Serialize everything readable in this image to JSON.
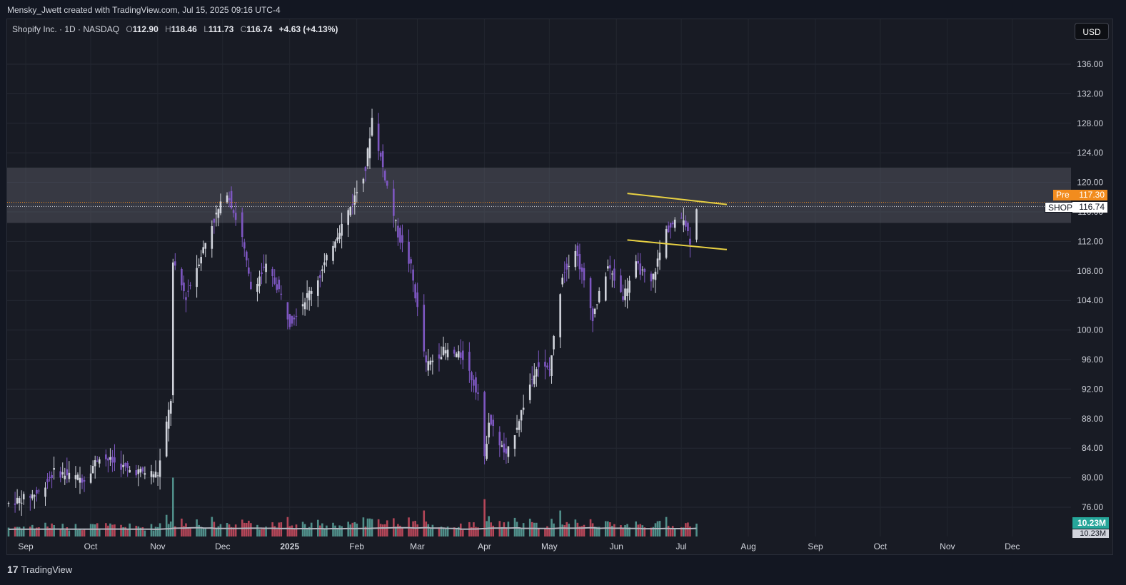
{
  "header": {
    "attribution": "Mensky_Jwett created with TradingView.com, Jul 15, 2025 09:16 UTC-4"
  },
  "legend": {
    "symbol": "Shopify Inc. · 1D · NASDAQ",
    "o_label": "O",
    "o_value": "112.90",
    "h_label": "H",
    "h_value": "118.46",
    "l_label": "L",
    "l_value": "111.73",
    "c_label": "C",
    "c_value": "116.74",
    "change": "+4.63 (+4.13%)"
  },
  "currency_button": "USD",
  "price_tags": {
    "pre_label": "Pre",
    "pre_value": "117.30",
    "symbol_label": "SHOP",
    "symbol_value": "116.74",
    "volume_value": "10.23M",
    "volume_ma_value": "10.23M"
  },
  "footer": {
    "brand_mark": "17",
    "brand_name": "TradingView"
  },
  "colors": {
    "up": "#d1d4dc",
    "down": "#7e57c2",
    "vol_up": "#5aa39c",
    "vol_down": "#d04d62",
    "trendline": "#e8d143",
    "zone": "#5d606b",
    "pre_tag": "#f28c1e",
    "vol_ma": "#b2b5be"
  },
  "chart_data": {
    "type": "candlestick",
    "y_axis": {
      "min": 72,
      "max": 140,
      "ticks": [
        76,
        80,
        84,
        88,
        92,
        96,
        100,
        104,
        108,
        112,
        116,
        120,
        124,
        128,
        132,
        136
      ]
    },
    "x_axis": {
      "labels": [
        "Sep",
        "Oct",
        "Nov",
        "Dec",
        "2025",
        "Feb",
        "Mar",
        "Apr",
        "May",
        "Jun",
        "Jul",
        "Aug",
        "Sep",
        "Oct",
        "Nov",
        "Dec"
      ]
    },
    "resistance_zone": {
      "low": 114.5,
      "high": 122
    },
    "trendlines": [
      {
        "from": [
          "2025-06-12",
          118.5
        ],
        "to": [
          "2025-07-28",
          117.0
        ]
      },
      {
        "from": [
          "2025-06-12",
          112.2
        ],
        "to": [
          "2025-07-28",
          110.9
        ]
      }
    ],
    "last_price": 116.74,
    "pre_market_price": 117.3,
    "last_volume": "10.23M",
    "series": [
      {
        "name": "price",
        "points": [
          [
            "2024-08-30",
            76.5
          ],
          [
            "2024-09-13",
            78.0
          ],
          [
            "2024-09-20",
            80.8
          ],
          [
            "2024-10-04",
            79.8
          ],
          [
            "2024-10-11",
            83.0
          ],
          [
            "2024-10-25",
            81.0
          ],
          [
            "2024-11-07",
            80.5
          ],
          [
            "2024-11-13",
            90.6
          ],
          [
            "2024-11-14",
            108.9
          ],
          [
            "2024-11-20",
            104.5
          ],
          [
            "2024-12-02",
            114.3
          ],
          [
            "2024-12-09",
            118.8
          ],
          [
            "2024-12-16",
            112.4
          ],
          [
            "2024-12-20",
            105.6
          ],
          [
            "2024-12-27",
            108.5
          ],
          [
            "2025-01-02",
            105.4
          ],
          [
            "2025-01-07",
            101.0
          ],
          [
            "2025-01-21",
            107.4
          ],
          [
            "2025-01-27",
            111.8
          ],
          [
            "2025-02-05",
            117.3
          ],
          [
            "2025-02-11",
            121.8
          ],
          [
            "2025-02-14",
            128.7
          ],
          [
            "2025-02-19",
            122.0
          ],
          [
            "2025-02-26",
            113.0
          ],
          [
            "2025-03-04",
            108.5
          ],
          [
            "2025-03-11",
            95.2
          ],
          [
            "2025-03-19",
            97.2
          ],
          [
            "2025-03-28",
            96.4
          ],
          [
            "2025-04-04",
            91.4
          ],
          [
            "2025-04-07",
            82.4
          ],
          [
            "2025-04-09",
            87.9
          ],
          [
            "2025-04-17",
            82.8
          ],
          [
            "2025-04-23",
            88.0
          ],
          [
            "2025-05-01",
            95.3
          ],
          [
            "2025-05-07",
            94.5
          ],
          [
            "2025-05-13",
            107.5
          ],
          [
            "2025-05-19",
            111.0
          ],
          [
            "2025-05-27",
            101.8
          ],
          [
            "2025-06-03",
            108.6
          ],
          [
            "2025-06-10",
            104.6
          ],
          [
            "2025-06-16",
            108.8
          ],
          [
            "2025-06-23",
            106.3
          ],
          [
            "2025-06-30",
            113.5
          ],
          [
            "2025-07-08",
            115.4
          ],
          [
            "2025-07-11",
            112.1
          ],
          [
            "2025-07-14",
            116.74
          ]
        ]
      }
    ]
  }
}
